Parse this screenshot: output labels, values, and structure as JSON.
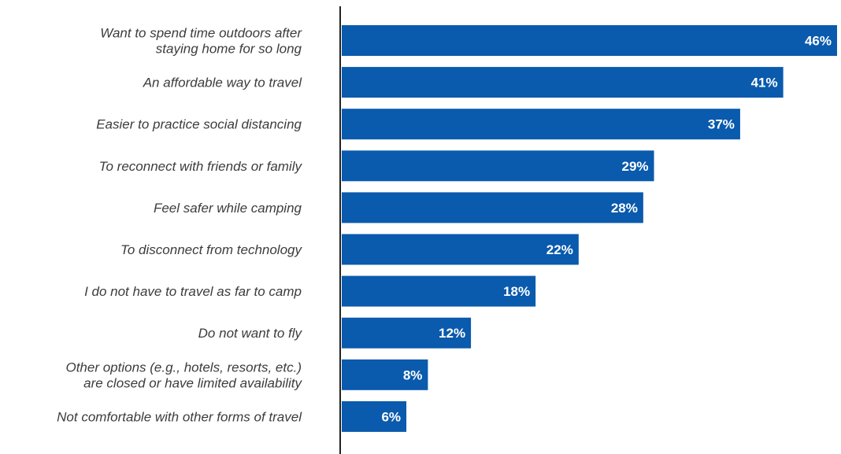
{
  "chart_data": {
    "type": "bar",
    "orientation": "horizontal",
    "bar_color": "#0a5aad",
    "axis_color": "#222222",
    "label_color": "#3c3c3c",
    "value_label_color": "#ffffff",
    "xlim": [
      0,
      46
    ],
    "grid": false,
    "legend": "none",
    "categories": [
      [
        "Want to spend time outdoors after",
        "staying home for so long"
      ],
      [
        "An affordable way to travel"
      ],
      [
        "Easier to practice social distancing"
      ],
      [
        "To reconnect with friends or family"
      ],
      [
        "Feel safer while camping"
      ],
      [
        "To disconnect from technology"
      ],
      [
        "I do not have to travel as far to camp"
      ],
      [
        "Do not want to fly"
      ],
      [
        "Other options (e.g., hotels, resorts, etc.)",
        "are closed or have limited availability"
      ],
      [
        "Not comfortable with other forms of travel"
      ]
    ],
    "values": [
      46,
      41,
      37,
      29,
      28,
      22,
      18,
      12,
      8,
      6
    ],
    "value_labels": [
      "46%",
      "41%",
      "37%",
      "29%",
      "28%",
      "22%",
      "18%",
      "12%",
      "8%",
      "6%"
    ]
  }
}
